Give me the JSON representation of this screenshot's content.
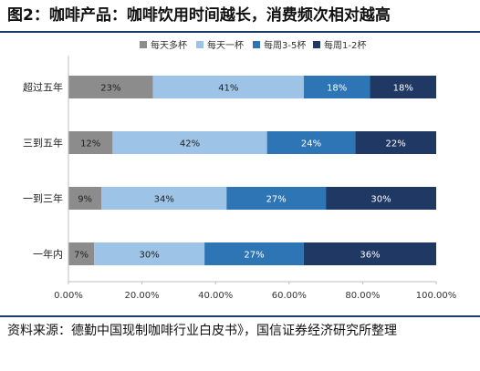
{
  "title": "图2：咖啡产品：咖啡饮用时间越长，消费频次相对越高",
  "source": "资料来源：德勤中国现制咖啡行业白皮书》，国信证券经济研究所整理",
  "chart_data": {
    "type": "bar",
    "orientation": "horizontal",
    "stacked": "percent",
    "categories": [
      "超过五年",
      "三到五年",
      "一到三年",
      "一年内"
    ],
    "series": [
      {
        "name": "每天多杯",
        "color": "#8c8c8c",
        "values": [
          23,
          12,
          9,
          7
        ],
        "labels": [
          "23%",
          "12%",
          "9%",
          "7%"
        ]
      },
      {
        "name": "每天一杯",
        "color": "#9dc3e6",
        "values": [
          41,
          42,
          34,
          30
        ],
        "labels": [
          "41%",
          "42%",
          "34%",
          "30%"
        ]
      },
      {
        "name": "每周3-5杯",
        "color": "#2e75b6",
        "values": [
          18,
          24,
          27,
          27
        ],
        "labels": [
          "18%",
          "24%",
          "27%",
          "27%"
        ]
      },
      {
        "name": "每周1-2杯",
        "color": "#1f3864",
        "values": [
          18,
          22,
          30,
          36
        ],
        "labels": [
          "18%",
          "22%",
          "30%",
          "36%"
        ]
      }
    ],
    "xlim": [
      0,
      100
    ],
    "xticks": [
      "0.00%",
      "20.00%",
      "40.00%",
      "60.00%",
      "80.00%",
      "100.00%"
    ],
    "legend_position": "top",
    "grid": false
  }
}
